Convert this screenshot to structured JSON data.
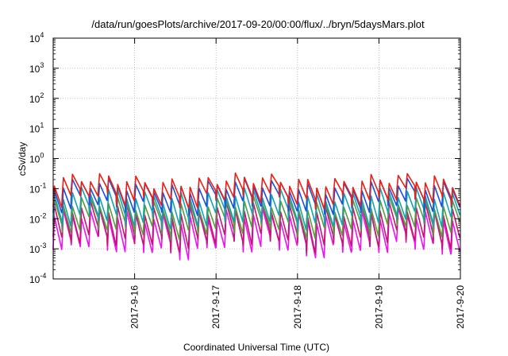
{
  "chart_data": {
    "type": "line",
    "title": "/data/run/goesPlots/archive/2017-09-20/00:00/flux/../bryn/5daysMars.plot",
    "xlabel": "Coordinated Universal Time (UTC)",
    "ylabel": "cSv/day",
    "y_scale": "log",
    "ylim_exp": [
      -4,
      4
    ],
    "y_ticks": [
      {
        "base": "10",
        "exp": "-4"
      },
      {
        "base": "10",
        "exp": "-3"
      },
      {
        "base": "10",
        "exp": "-2"
      },
      {
        "base": "10",
        "exp": "-1"
      },
      {
        "base": "10",
        "exp": "0"
      },
      {
        "base": "10",
        "exp": "1"
      },
      {
        "base": "10",
        "exp": "2"
      },
      {
        "base": "10",
        "exp": "3"
      },
      {
        "base": "10",
        "exp": "4"
      }
    ],
    "xlim": [
      "2017-09-15 00:00",
      "2017-09-20 00:00"
    ],
    "x_ticks": [
      "2017-9-16",
      "2017-9-17",
      "2017-9-18",
      "2017-9-19",
      "2017-9-20"
    ],
    "grid": true,
    "cycles_per_day": 9,
    "series": [
      {
        "color": "#e8201a",
        "peak": 0.18,
        "trough": 0.05
      },
      {
        "color": "#1f4fd6",
        "peak": 0.12,
        "trough": 0.03
      },
      {
        "color": "#18a0b0",
        "peak": 0.06,
        "trough": 0.01
      },
      {
        "color": "#5a9a40",
        "peak": 0.03,
        "trough": 0.005
      },
      {
        "color": "#c01870",
        "peak": 0.02,
        "trough": 0.002
      },
      {
        "color": "#f010f0",
        "peak": 0.012,
        "trough": 0.0012
      }
    ]
  }
}
